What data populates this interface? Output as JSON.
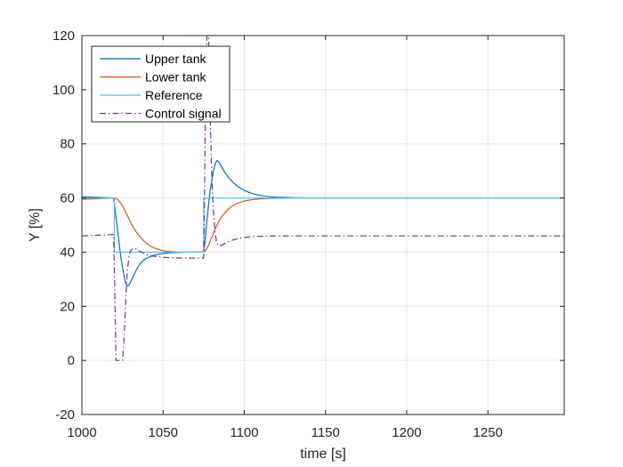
{
  "chart_data": {
    "type": "line",
    "title": "",
    "xlabel": "time [s]",
    "ylabel": "Y [%]",
    "xlim": [
      1000,
      1297
    ],
    "ylim": [
      -20,
      120
    ],
    "xticks": [
      "1000",
      "1050",
      "1100",
      "1150",
      "1200",
      "1250"
    ],
    "yticks": [
      "-20",
      "0",
      "20",
      "40",
      "60",
      "80",
      "100",
      "120"
    ],
    "grid": true,
    "legend": "top-left",
    "series": [
      {
        "name": "Upper tank",
        "color": "#0072bd",
        "style": "solid",
        "x": [
          1000,
          1019.5,
          1020,
          1022,
          1024,
          1026,
          1027,
          1028,
          1029,
          1030,
          1032,
          1034,
          1036,
          1038,
          1040,
          1044,
          1048,
          1052,
          1056,
          1060,
          1065,
          1070,
          1075,
          1075.5,
          1077,
          1079,
          1081,
          1082,
          1083,
          1084,
          1086,
          1088,
          1090,
          1093,
          1096,
          1100,
          1105,
          1110,
          1115,
          1120,
          1130,
          1140,
          1297
        ],
        "y": [
          60.5,
          60,
          58,
          48,
          38,
          31,
          28.5,
          27.5,
          27.8,
          29,
          31.5,
          34,
          35.8,
          37,
          37.8,
          38.8,
          39.3,
          39.6,
          39.8,
          39.9,
          40,
          40,
          40,
          42,
          52,
          63,
          70,
          72.5,
          73.8,
          73.5,
          71.5,
          69.5,
          67.8,
          65.8,
          64.2,
          62.8,
          61.6,
          60.9,
          60.5,
          60.3,
          60.1,
          60,
          60
        ]
      },
      {
        "name": "Lower tank",
        "color": "#d95319",
        "style": "solid",
        "x": [
          1000,
          1019,
          1020,
          1022,
          1024,
          1026,
          1028,
          1030,
          1032,
          1034,
          1036,
          1038,
          1040,
          1042,
          1044,
          1046,
          1048,
          1050,
          1055,
          1060,
          1065,
          1070,
          1075,
          1076,
          1078,
          1080,
          1082,
          1084,
          1086,
          1088,
          1090,
          1092,
          1095,
          1100,
          1105,
          1110,
          1115,
          1120,
          1125,
          1130,
          1140,
          1297
        ],
        "y": [
          59.5,
          60,
          60,
          59.5,
          58,
          56,
          53.5,
          51,
          48.8,
          47,
          45.5,
          44.2,
          43.2,
          42.3,
          41.7,
          41.2,
          40.8,
          40.5,
          40.2,
          40,
          40,
          40,
          40,
          40.5,
          42.5,
          45.5,
          48.5,
          51,
          53,
          54.5,
          55.8,
          56.8,
          57.9,
          58.9,
          59.4,
          59.7,
          59.85,
          59.92,
          59.96,
          60,
          60,
          60
        ]
      },
      {
        "name": "Reference",
        "color": "#4dbeee",
        "style": "solid",
        "x": [
          1000,
          1020,
          1020,
          1075,
          1075,
          1297
        ],
        "y": [
          60,
          60,
          40,
          40,
          60,
          60
        ]
      },
      {
        "name": "Control signal",
        "color": "#7e2f8e",
        "style": "dashdot",
        "x": [
          1000,
          1019.5,
          1020,
          1021,
          1022,
          1025,
          1026,
          1027,
          1028,
          1029,
          1030,
          1032,
          1034,
          1036,
          1038,
          1040,
          1044,
          1048,
          1052,
          1056,
          1060,
          1065,
          1070,
          1075,
          1075.5,
          1076,
          1077,
          1078,
          1079,
          1080,
          1081,
          1082,
          1083,
          1084,
          1086,
          1088,
          1090,
          1093,
          1096,
          1100,
          1105,
          1110,
          1115,
          1120,
          1130,
          1140,
          1297
        ],
        "y": [
          46,
          46.5,
          35,
          0,
          0,
          0,
          8,
          22,
          33,
          38.5,
          40.5,
          41.5,
          41,
          40.2,
          39.6,
          39,
          38.5,
          38.2,
          38,
          37.9,
          37.8,
          37.8,
          37.8,
          37.8,
          60,
          90,
          120,
          120,
          90,
          68,
          55,
          47,
          43.5,
          42.3,
          42.5,
          43.2,
          43.8,
          44.5,
          45,
          45.4,
          45.7,
          45.85,
          45.92,
          45.96,
          46,
          46,
          46
        ]
      }
    ]
  }
}
